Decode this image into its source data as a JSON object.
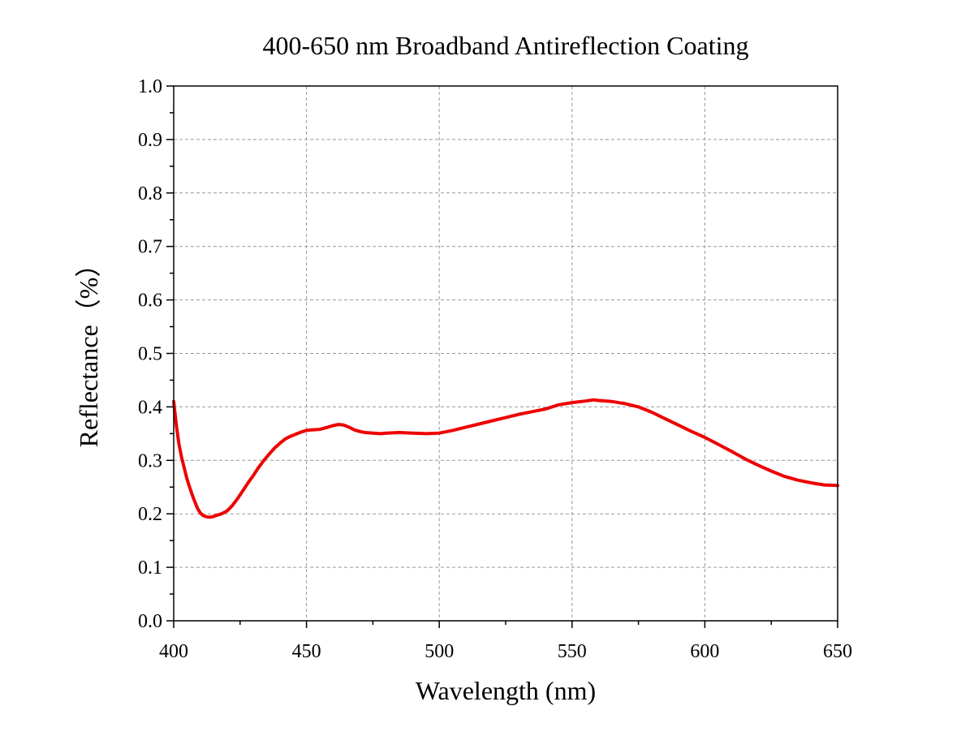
{
  "chart_data": {
    "type": "line",
    "title": "400-650 nm Broadband Antireflection Coating",
    "xlabel": "Wavelength (nm)",
    "ylabel": "Reflectance（%）",
    "xlim": [
      400,
      650
    ],
    "ylim": [
      0.0,
      1.0
    ],
    "xticks": [
      "400",
      "450",
      "500",
      "550",
      "600",
      "650"
    ],
    "yticks": [
      "0.0",
      "0.1",
      "0.2",
      "0.3",
      "0.4",
      "0.5",
      "0.6",
      "0.7",
      "0.8",
      "0.9",
      "1.0"
    ],
    "grid": true,
    "legend": "none",
    "series": [
      {
        "color": "#ee0000",
        "x": [
          400,
          401,
          402,
          403,
          404,
          405,
          406,
          407,
          408,
          409,
          410,
          411,
          412,
          413,
          414,
          415,
          416,
          418,
          420,
          422,
          424,
          426,
          428,
          430,
          432,
          434,
          436,
          438,
          440,
          442,
          444,
          446,
          448,
          450,
          452,
          455,
          458,
          460,
          462,
          464,
          466,
          468,
          470,
          472,
          475,
          478,
          480,
          485,
          490,
          495,
          500,
          505,
          510,
          515,
          520,
          525,
          530,
          535,
          540,
          545,
          550,
          555,
          558,
          560,
          565,
          570,
          575,
          580,
          585,
          590,
          595,
          600,
          605,
          610,
          615,
          620,
          625,
          630,
          635,
          640,
          645,
          650
        ],
        "y": [
          0.41,
          0.365,
          0.33,
          0.305,
          0.285,
          0.265,
          0.25,
          0.235,
          0.222,
          0.21,
          0.202,
          0.197,
          0.195,
          0.194,
          0.194,
          0.195,
          0.197,
          0.2,
          0.205,
          0.215,
          0.228,
          0.243,
          0.258,
          0.272,
          0.287,
          0.3,
          0.312,
          0.323,
          0.332,
          0.34,
          0.345,
          0.349,
          0.353,
          0.356,
          0.357,
          0.358,
          0.362,
          0.365,
          0.367,
          0.366,
          0.362,
          0.357,
          0.354,
          0.352,
          0.351,
          0.35,
          0.351,
          0.352,
          0.351,
          0.35,
          0.351,
          0.356,
          0.362,
          0.368,
          0.374,
          0.38,
          0.386,
          0.391,
          0.396,
          0.404,
          0.408,
          0.411,
          0.413,
          0.412,
          0.41,
          0.406,
          0.4,
          0.39,
          0.378,
          0.366,
          0.354,
          0.343,
          0.33,
          0.317,
          0.303,
          0.291,
          0.28,
          0.27,
          0.263,
          0.258,
          0.254,
          0.253
        ]
      }
    ]
  }
}
